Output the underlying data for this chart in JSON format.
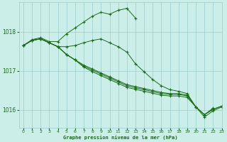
{
  "title": "Graphe pression niveau de la mer (hPa)",
  "background_color": "#cceee8",
  "plot_bg_color": "#cceee8",
  "line_color": "#1a6b1a",
  "grid_color": "#99cccc",
  "xlim": [
    -0.5,
    23
  ],
  "ylim": [
    1015.55,
    1018.75
  ],
  "yticks": [
    1016,
    1017,
    1018
  ],
  "xticks": [
    0,
    1,
    2,
    3,
    4,
    5,
    6,
    7,
    8,
    9,
    10,
    11,
    12,
    13,
    14,
    15,
    16,
    17,
    18,
    19,
    20,
    21,
    22,
    23
  ],
  "series": [
    {
      "x": [
        0,
        1,
        2,
        3,
        4,
        5,
        6,
        7,
        8,
        9,
        10,
        11,
        12,
        13
      ],
      "y": [
        1017.65,
        1017.8,
        1017.85,
        1017.75,
        1017.75,
        1017.95,
        1018.1,
        1018.25,
        1018.4,
        1018.5,
        1018.45,
        1018.55,
        1018.6,
        1018.35
      ]
    },
    {
      "x": [
        0,
        1,
        2,
        3,
        4,
        5,
        6,
        7,
        8,
        9,
        10,
        11,
        12,
        13,
        14,
        15,
        16,
        17,
        18,
        19,
        20,
        21,
        22
      ],
      "y": [
        1017.65,
        1017.78,
        1017.82,
        1017.72,
        1017.62,
        1017.62,
        1017.65,
        1017.72,
        1017.78,
        1017.82,
        1017.72,
        1017.62,
        1017.48,
        1017.18,
        1016.98,
        1016.78,
        1016.62,
        1016.52,
        1016.48,
        1016.42,
        1016.08,
        1015.88,
        1016.05
      ]
    },
    {
      "x": [
        0,
        1,
        2,
        3,
        4,
        5,
        6,
        7,
        8,
        9,
        10,
        11,
        12,
        13,
        14,
        15,
        16,
        17,
        18,
        19,
        20,
        21,
        22,
        23
      ],
      "y": [
        1017.65,
        1017.78,
        1017.82,
        1017.72,
        1017.62,
        1017.42,
        1017.28,
        1017.15,
        1017.05,
        1016.95,
        1016.85,
        1016.75,
        1016.65,
        1016.6,
        1016.55,
        1016.5,
        1016.45,
        1016.42,
        1016.42,
        1016.38,
        1016.08,
        1015.88,
        1016.02,
        1016.1
      ]
    },
    {
      "x": [
        0,
        1,
        2,
        3,
        4,
        5,
        6,
        7,
        8,
        9,
        10,
        11,
        12,
        13,
        14,
        15,
        16,
        17,
        18,
        19,
        20,
        21,
        22,
        23
      ],
      "y": [
        1017.65,
        1017.78,
        1017.82,
        1017.72,
        1017.62,
        1017.42,
        1017.28,
        1017.12,
        1017.02,
        1016.92,
        1016.82,
        1016.72,
        1016.62,
        1016.57,
        1016.52,
        1016.47,
        1016.42,
        1016.4,
        1016.4,
        1016.36,
        1016.08,
        1015.88,
        1016.02,
        1016.1
      ]
    },
    {
      "x": [
        0,
        1,
        2,
        3,
        4,
        5,
        6,
        7,
        8,
        9,
        10,
        11,
        12,
        13,
        14,
        15,
        16,
        17,
        18,
        19,
        20,
        21,
        22,
        23
      ],
      "y": [
        1017.65,
        1017.78,
        1017.82,
        1017.72,
        1017.62,
        1017.42,
        1017.28,
        1017.1,
        1016.98,
        1016.88,
        1016.78,
        1016.68,
        1016.58,
        1016.53,
        1016.48,
        1016.43,
        1016.38,
        1016.36,
        1016.36,
        1016.32,
        1016.08,
        1015.82,
        1015.98,
        1016.08
      ]
    }
  ]
}
